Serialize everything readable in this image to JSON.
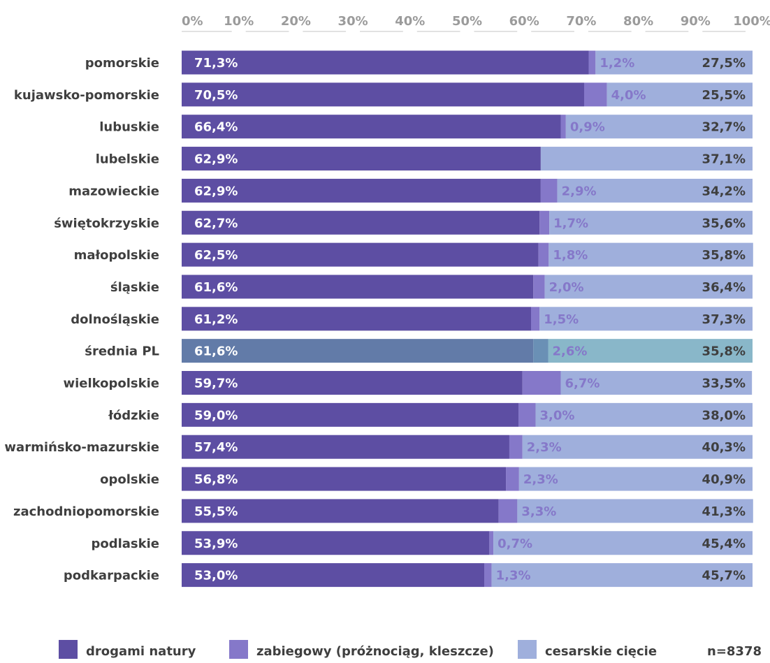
{
  "chart_data": {
    "type": "bar",
    "stacked": true,
    "orientation": "horizontal",
    "xlim": [
      0,
      100
    ],
    "x_ticks": [
      "0%",
      "10%",
      "20%",
      "30%",
      "40%",
      "50%",
      "60%",
      "70%",
      "80%",
      "90%",
      "100%"
    ],
    "categories": [
      "pomorskie",
      "kujawsko-pomorskie",
      "lubuskie",
      "lubelskie",
      "mazowieckie",
      "świętokrzyskie",
      "małopolskie",
      "śląskie",
      "dolnośląskie",
      "średnia PL",
      "wielkopolskie",
      "łódzkie",
      "warmińsko-mazurskie",
      "opolskie",
      "zachodniopomorskie",
      "podlaskie",
      "podkarpackie"
    ],
    "series": [
      {
        "name": "drogami natury",
        "color": "#5d4ea3",
        "values": [
          71.3,
          70.5,
          66.4,
          62.9,
          62.9,
          62.7,
          62.5,
          61.6,
          61.2,
          61.6,
          59.7,
          59.0,
          57.4,
          56.8,
          55.5,
          53.9,
          53.0
        ],
        "labels": [
          "71,3%",
          "70,5%",
          "66,4%",
          "62,9%",
          "62,9%",
          "62,7%",
          "62,5%",
          "61,6%",
          "61,2%",
          "61,6%",
          "59,7%",
          "59,0%",
          "57,4%",
          "56,8%",
          "55,5%",
          "53,9%",
          "53,0%"
        ]
      },
      {
        "name": "zabiegowy (próżnociąg, kleszcze)",
        "color": "#8578c9",
        "values": [
          1.2,
          4.0,
          0.9,
          0.0,
          2.9,
          1.7,
          1.8,
          2.0,
          1.5,
          2.6,
          6.7,
          3.0,
          2.3,
          2.3,
          3.3,
          0.7,
          1.3
        ],
        "labels": [
          "1,2%",
          "4,0%",
          "0,9%",
          "",
          "2,9%",
          "1,7%",
          "1,8%",
          "2,0%",
          "1,5%",
          "2,6%",
          "6,7%",
          "3,0%",
          "2,3%",
          "2,3%",
          "3,3%",
          "0,7%",
          "1,3%"
        ]
      },
      {
        "name": "cesarskie cięcie",
        "color": "#9fafdc",
        "values": [
          27.5,
          25.5,
          32.7,
          37.1,
          34.2,
          35.6,
          35.8,
          36.4,
          37.3,
          35.8,
          33.5,
          38.0,
          40.3,
          40.9,
          41.3,
          45.4,
          45.7
        ],
        "labels": [
          "27,5%",
          "25,5%",
          "32,7%",
          "37,1%",
          "34,2%",
          "35,6%",
          "35,8%",
          "36,4%",
          "37,3%",
          "35,8%",
          "33,5%",
          "38,0%",
          "40,3%",
          "40,9%",
          "41,3%",
          "45,4%",
          "45,7%"
        ]
      }
    ],
    "highlight": {
      "category": "średnia PL",
      "colors": [
        "#627ba8",
        "#6a90b5",
        "#89b7c9"
      ]
    },
    "note": "n=8378",
    "legend_position": "bottom"
  }
}
